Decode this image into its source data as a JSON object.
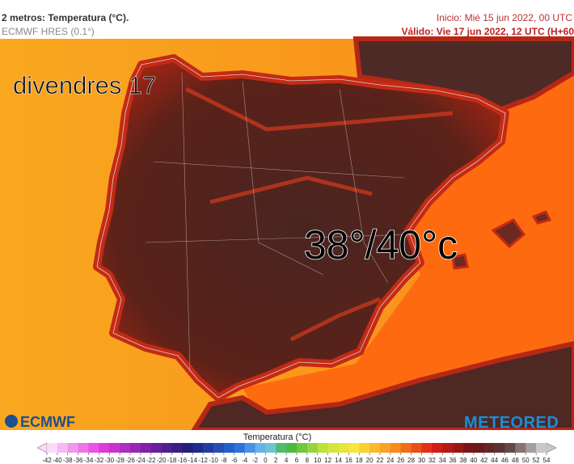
{
  "header": {
    "title": "2 metros: Temperatura (°C).",
    "model": "ECMWF HRES (0.1°)",
    "init": "Inicio: Mié 15 jun 2022, 00 UTC",
    "valid": "Válido: Vie 17 jun 2022, 12 UTC (H+60"
  },
  "map": {
    "day_label": "divendres 17",
    "temperature_label": "38°/40°c",
    "logo_left": "ECMWF",
    "logo_right": "METEORED"
  },
  "legend": {
    "title": "Temperatura (°C)",
    "ticks": [
      -42,
      -40,
      -38,
      -36,
      -34,
      -32,
      -30,
      -28,
      -26,
      -24,
      -22,
      -20,
      -18,
      -16,
      -14,
      -12,
      -10,
      -8,
      -6,
      -4,
      -2,
      0,
      2,
      4,
      6,
      8,
      10,
      12,
      14,
      16,
      18,
      20,
      22,
      24,
      26,
      28,
      30,
      32,
      34,
      36,
      38,
      40,
      42,
      44,
      46,
      48,
      50,
      52,
      54
    ]
  }
}
